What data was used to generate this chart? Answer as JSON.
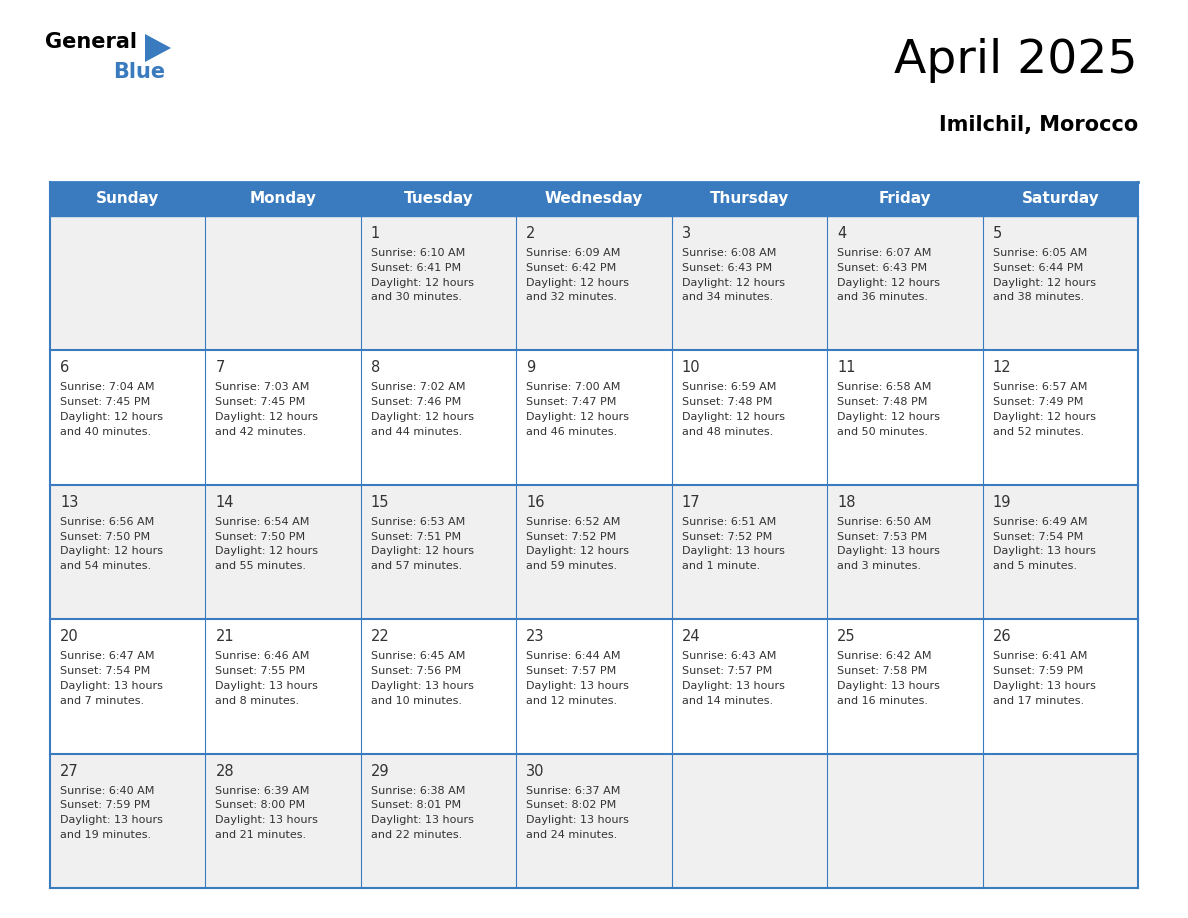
{
  "title": "April 2025",
  "subtitle": "Imilchil, Morocco",
  "header_bg": "#3a7bbf",
  "header_text_color": "#ffffff",
  "border_color": "#3a7bbf",
  "text_color": "#333333",
  "days_of_week": [
    "Sunday",
    "Monday",
    "Tuesday",
    "Wednesday",
    "Thursday",
    "Friday",
    "Saturday"
  ],
  "weeks": [
    [
      {
        "day": "",
        "info": ""
      },
      {
        "day": "",
        "info": ""
      },
      {
        "day": "1",
        "info": "Sunrise: 6:10 AM\nSunset: 6:41 PM\nDaylight: 12 hours\nand 30 minutes."
      },
      {
        "day": "2",
        "info": "Sunrise: 6:09 AM\nSunset: 6:42 PM\nDaylight: 12 hours\nand 32 minutes."
      },
      {
        "day": "3",
        "info": "Sunrise: 6:08 AM\nSunset: 6:43 PM\nDaylight: 12 hours\nand 34 minutes."
      },
      {
        "day": "4",
        "info": "Sunrise: 6:07 AM\nSunset: 6:43 PM\nDaylight: 12 hours\nand 36 minutes."
      },
      {
        "day": "5",
        "info": "Sunrise: 6:05 AM\nSunset: 6:44 PM\nDaylight: 12 hours\nand 38 minutes."
      }
    ],
    [
      {
        "day": "6",
        "info": "Sunrise: 7:04 AM\nSunset: 7:45 PM\nDaylight: 12 hours\nand 40 minutes."
      },
      {
        "day": "7",
        "info": "Sunrise: 7:03 AM\nSunset: 7:45 PM\nDaylight: 12 hours\nand 42 minutes."
      },
      {
        "day": "8",
        "info": "Sunrise: 7:02 AM\nSunset: 7:46 PM\nDaylight: 12 hours\nand 44 minutes."
      },
      {
        "day": "9",
        "info": "Sunrise: 7:00 AM\nSunset: 7:47 PM\nDaylight: 12 hours\nand 46 minutes."
      },
      {
        "day": "10",
        "info": "Sunrise: 6:59 AM\nSunset: 7:48 PM\nDaylight: 12 hours\nand 48 minutes."
      },
      {
        "day": "11",
        "info": "Sunrise: 6:58 AM\nSunset: 7:48 PM\nDaylight: 12 hours\nand 50 minutes."
      },
      {
        "day": "12",
        "info": "Sunrise: 6:57 AM\nSunset: 7:49 PM\nDaylight: 12 hours\nand 52 minutes."
      }
    ],
    [
      {
        "day": "13",
        "info": "Sunrise: 6:56 AM\nSunset: 7:50 PM\nDaylight: 12 hours\nand 54 minutes."
      },
      {
        "day": "14",
        "info": "Sunrise: 6:54 AM\nSunset: 7:50 PM\nDaylight: 12 hours\nand 55 minutes."
      },
      {
        "day": "15",
        "info": "Sunrise: 6:53 AM\nSunset: 7:51 PM\nDaylight: 12 hours\nand 57 minutes."
      },
      {
        "day": "16",
        "info": "Sunrise: 6:52 AM\nSunset: 7:52 PM\nDaylight: 12 hours\nand 59 minutes."
      },
      {
        "day": "17",
        "info": "Sunrise: 6:51 AM\nSunset: 7:52 PM\nDaylight: 13 hours\nand 1 minute."
      },
      {
        "day": "18",
        "info": "Sunrise: 6:50 AM\nSunset: 7:53 PM\nDaylight: 13 hours\nand 3 minutes."
      },
      {
        "day": "19",
        "info": "Sunrise: 6:49 AM\nSunset: 7:54 PM\nDaylight: 13 hours\nand 5 minutes."
      }
    ],
    [
      {
        "day": "20",
        "info": "Sunrise: 6:47 AM\nSunset: 7:54 PM\nDaylight: 13 hours\nand 7 minutes."
      },
      {
        "day": "21",
        "info": "Sunrise: 6:46 AM\nSunset: 7:55 PM\nDaylight: 13 hours\nand 8 minutes."
      },
      {
        "day": "22",
        "info": "Sunrise: 6:45 AM\nSunset: 7:56 PM\nDaylight: 13 hours\nand 10 minutes."
      },
      {
        "day": "23",
        "info": "Sunrise: 6:44 AM\nSunset: 7:57 PM\nDaylight: 13 hours\nand 12 minutes."
      },
      {
        "day": "24",
        "info": "Sunrise: 6:43 AM\nSunset: 7:57 PM\nDaylight: 13 hours\nand 14 minutes."
      },
      {
        "day": "25",
        "info": "Sunrise: 6:42 AM\nSunset: 7:58 PM\nDaylight: 13 hours\nand 16 minutes."
      },
      {
        "day": "26",
        "info": "Sunrise: 6:41 AM\nSunset: 7:59 PM\nDaylight: 13 hours\nand 17 minutes."
      }
    ],
    [
      {
        "day": "27",
        "info": "Sunrise: 6:40 AM\nSunset: 7:59 PM\nDaylight: 13 hours\nand 19 minutes."
      },
      {
        "day": "28",
        "info": "Sunrise: 6:39 AM\nSunset: 8:00 PM\nDaylight: 13 hours\nand 21 minutes."
      },
      {
        "day": "29",
        "info": "Sunrise: 6:38 AM\nSunset: 8:01 PM\nDaylight: 13 hours\nand 22 minutes."
      },
      {
        "day": "30",
        "info": "Sunrise: 6:37 AM\nSunset: 8:02 PM\nDaylight: 13 hours\nand 24 minutes."
      },
      {
        "day": "",
        "info": ""
      },
      {
        "day": "",
        "info": ""
      },
      {
        "day": "",
        "info": ""
      }
    ]
  ],
  "logo_text_general": "General",
  "logo_text_blue": "Blue",
  "logo_triangle_color": "#3a7bbf",
  "title_fontsize": 34,
  "subtitle_fontsize": 15,
  "header_fontsize": 11,
  "day_number_fontsize": 10.5,
  "info_fontsize": 8.0
}
